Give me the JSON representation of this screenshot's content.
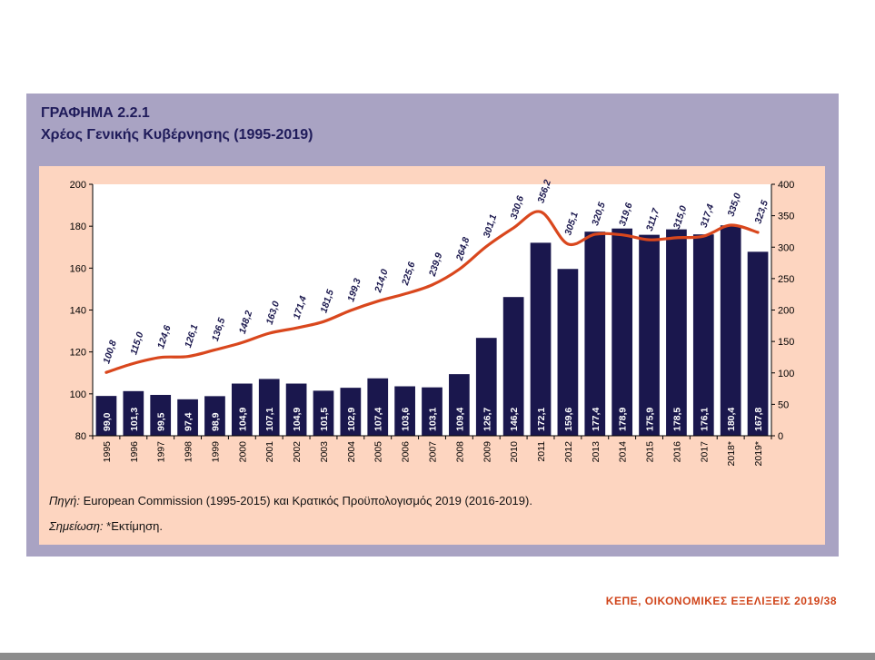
{
  "header": {
    "title": "ΓΡΑΦΗΜΑ 2.2.1",
    "subtitle": "Χρέος Γενικής Κυβέρνησης (1995-2019)"
  },
  "notes": {
    "source_label": "Πηγή:",
    "source_text": " European Commission (1995-2015) και Κρατικός Προϋπολογισμός 2019 (2016-2019).",
    "note_label": "Σημείωση:",
    "note_text": " *Εκτίμηση."
  },
  "footer": {
    "text": "ΚΕΠΕ, ΟΙΚΟΝΟΜΙΚΕΣ ΕΞΕΛΙΞΕΙΣ 2019/38"
  },
  "colors": {
    "bar": "#1a174d",
    "line": "#d9471d",
    "panel": "#a9a3c3",
    "inner": "#fdd5c0"
  },
  "chart_data": {
    "type": "bar",
    "categories": [
      "1995",
      "1996",
      "1997",
      "1998",
      "1999",
      "2000",
      "2001",
      "2002",
      "2003",
      "2004",
      "2005",
      "2006",
      "2007",
      "2008",
      "2009",
      "2010",
      "2011",
      "2012",
      "2013",
      "2014",
      "2015",
      "2016",
      "2017",
      "2018*",
      "2019*"
    ],
    "series": [
      {
        "type": "bar",
        "axis": "left",
        "values": [
          99.0,
          101.3,
          99.5,
          97.4,
          98.9,
          104.9,
          107.1,
          104.9,
          101.5,
          102.9,
          107.4,
          103.6,
          103.1,
          109.4,
          126.7,
          146.2,
          172.1,
          159.6,
          177.4,
          178.9,
          175.9,
          178.5,
          176.1,
          180.4,
          167.8
        ],
        "labels": [
          "99,0",
          "101,3",
          "99,5",
          "97,4",
          "98,9",
          "104,9",
          "107,1",
          "104,9",
          "101,5",
          "102,9",
          "107,4",
          "103,6",
          "103,1",
          "109,4",
          "126,7",
          "146,2",
          "172,1",
          "159,6",
          "177,4",
          "178,9",
          "175,9",
          "178,5",
          "176,1",
          "180,4",
          "167,8"
        ]
      },
      {
        "type": "line",
        "axis": "right",
        "values": [
          100.8,
          115.0,
          124.6,
          126.1,
          136.5,
          148.2,
          163.0,
          171.4,
          181.5,
          199.3,
          214.0,
          225.6,
          239.9,
          264.8,
          301.1,
          330.6,
          356.2,
          305.1,
          320.5,
          319.6,
          311.7,
          315.0,
          317.4,
          335.0,
          323.5
        ],
        "labels": [
          "100,8",
          "115,0",
          "124,6",
          "126,1",
          "136,5",
          "148,2",
          "163,0",
          "171,4",
          "181,5",
          "199,3",
          "214,0",
          "225,6",
          "239,9",
          "264,8",
          "301,1",
          "330,6",
          "356,2",
          "305,1",
          "320,5",
          "319,6",
          "311,7",
          "315,0",
          "317,4",
          "335,0",
          "323,5"
        ]
      }
    ],
    "ylim_left": [
      80,
      200
    ],
    "yticks_left": [
      80,
      100,
      120,
      140,
      160,
      180,
      200
    ],
    "ylim_right": [
      0,
      400
    ],
    "yticks_right": [
      0,
      50,
      100,
      150,
      200,
      250,
      300,
      350,
      400
    ],
    "grid": false,
    "legend": false
  }
}
